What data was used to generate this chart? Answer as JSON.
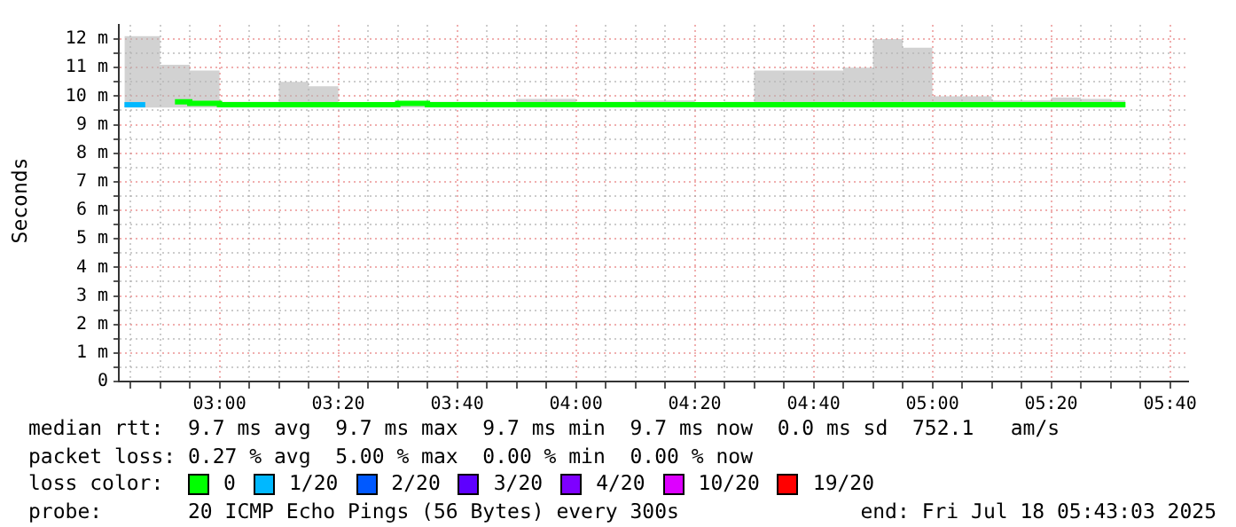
{
  "chart_data": {
    "type": "step",
    "ylabel": "Seconds",
    "legend_title": "loss color:",
    "legend": "bottom",
    "grid": true,
    "x": [
      2.7333,
      2.7917,
      2.875,
      2.9583,
      3.0417,
      3.125,
      3.2083,
      3.2917,
      3.375,
      3.4583,
      3.5417,
      3.625,
      3.7083,
      3.7917,
      3.875,
      3.9583,
      4.0417,
      4.125,
      4.2083,
      4.2917,
      4.375,
      4.4583,
      4.5417,
      4.625,
      4.7083,
      4.7917,
      4.875,
      4.9583,
      5.0417,
      5.125,
      5.2083,
      5.2917,
      5.375,
      5.4583,
      5.5417
    ],
    "xlim": [
      2.7175,
      5.7175
    ],
    "xticks": [
      {
        "value": 2.75,
        "label": null
      },
      {
        "value": 2.8333,
        "label": null
      },
      {
        "value": 2.9167,
        "label": null
      },
      {
        "value": 3,
        "label": "03:00"
      },
      {
        "value": 3.0833,
        "label": null
      },
      {
        "value": 3.1667,
        "label": null
      },
      {
        "value": 3.25,
        "label": null
      },
      {
        "value": 3.3333,
        "label": "03:20"
      },
      {
        "value": 3.4167,
        "label": null
      },
      {
        "value": 3.5,
        "label": null
      },
      {
        "value": 3.5833,
        "label": null
      },
      {
        "value": 3.6667,
        "label": "03:40"
      },
      {
        "value": 3.75,
        "label": null
      },
      {
        "value": 3.8333,
        "label": null
      },
      {
        "value": 3.9167,
        "label": null
      },
      {
        "value": 4,
        "label": "04:00"
      },
      {
        "value": 4.0833,
        "label": null
      },
      {
        "value": 4.1667,
        "label": null
      },
      {
        "value": 4.25,
        "label": null
      },
      {
        "value": 4.3333,
        "label": "04:20"
      },
      {
        "value": 4.4167,
        "label": null
      },
      {
        "value": 4.5,
        "label": null
      },
      {
        "value": 4.5833,
        "label": null
      },
      {
        "value": 4.6667,
        "label": "04:40"
      },
      {
        "value": 4.75,
        "label": null
      },
      {
        "value": 4.8333,
        "label": null
      },
      {
        "value": 4.9167,
        "label": null
      },
      {
        "value": 5,
        "label": "05:00"
      },
      {
        "value": 5.0833,
        "label": null
      },
      {
        "value": 5.1667,
        "label": null
      },
      {
        "value": 5.25,
        "label": null
      },
      {
        "value": 5.3333,
        "label": "05:20"
      },
      {
        "value": 5.4167,
        "label": null
      },
      {
        "value": 5.5,
        "label": null
      },
      {
        "value": 5.5833,
        "label": null
      },
      {
        "value": 5.6667,
        "label": "05:40"
      }
    ],
    "ylim": [
      0,
      12.5
    ],
    "yticks": [
      0,
      {
        "value": 0.5,
        "label": null
      },
      {
        "value": 1,
        "label": "1 m"
      },
      {
        "value": 1.5,
        "label": null
      },
      {
        "value": 2,
        "label": "2 m"
      },
      {
        "value": 2.5,
        "label": null
      },
      {
        "value": 3,
        "label": "3 m"
      },
      {
        "value": 3.5,
        "label": null
      },
      {
        "value": 4,
        "label": "4 m"
      },
      {
        "value": 4.5,
        "label": null
      },
      {
        "value": 5,
        "label": "5 m"
      },
      {
        "value": 5.5,
        "label": null
      },
      {
        "value": 6,
        "label": "6 m"
      },
      {
        "value": 6.5,
        "label": null
      },
      {
        "value": 7,
        "label": "7 m"
      },
      {
        "value": 7.5,
        "label": null
      },
      {
        "value": 8,
        "label": "8 m"
      },
      {
        "value": 8.5,
        "label": null
      },
      {
        "value": 9,
        "label": "9 m"
      },
      {
        "value": 9.5,
        "label": null
      },
      {
        "value": 10,
        "label": "10 m"
      },
      {
        "value": 10.5,
        "label": null
      },
      {
        "value": 11,
        "label": "11 m"
      },
      {
        "value": 11.5,
        "label": null
      },
      {
        "value": 12,
        "label": "12 m"
      }
    ],
    "series": [
      {
        "name": "0",
        "color": "#00ff00",
        "values": [
          null,
          null,
          9.8,
          9.75,
          9.7,
          9.7,
          9.7,
          9.7,
          9.7,
          9.7,
          9.75,
          9.7,
          9.7,
          9.7,
          9.7,
          9.7,
          9.7,
          9.7,
          9.7,
          9.7,
          9.7,
          9.7,
          9.7,
          9.7,
          9.7,
          9.7,
          9.7,
          9.7,
          9.7,
          9.7,
          9.7,
          9.7,
          9.7,
          9.7,
          9.7
        ],
        "lower": [
          9.6,
          9.6,
          9.6,
          9.6,
          9.6,
          9.6,
          9.6,
          9.6,
          9.6,
          9.6,
          9.6,
          9.6,
          9.6,
          9.6,
          9.6,
          9.6,
          9.6,
          9.6,
          9.6,
          9.6,
          9.6,
          9.6,
          9.6,
          9.6,
          9.6,
          9.6,
          9.6,
          9.6,
          9.6,
          9.6,
          9.6,
          9.6,
          9.6,
          9.6,
          9.6
        ],
        "upper": [
          12.1,
          12.1,
          11.1,
          10.9,
          9.8,
          9.8,
          10.5,
          10.35,
          9.7,
          9.7,
          9.8,
          9.8,
          9.8,
          9.8,
          9.9,
          9.9,
          9.8,
          9.8,
          9.85,
          9.85,
          9.7,
          9.8,
          10.9,
          10.9,
          10.9,
          11,
          12,
          11.7,
          10,
          10,
          9.85,
          9.85,
          9.95,
          9.9,
          9.85
        ]
      },
      {
        "name": "1/20",
        "color": "#00b8ff",
        "values": [
          9.7,
          9.7,
          null,
          null,
          null,
          null,
          null,
          null,
          null,
          null,
          null,
          null,
          null,
          null,
          null,
          null,
          null,
          null,
          null,
          null,
          null,
          null,
          null,
          null,
          null,
          null,
          null,
          null,
          null,
          null,
          null,
          null,
          null,
          null,
          null
        ]
      },
      {
        "name": "2/20",
        "color": "#0059ff",
        "values": [
          null,
          null,
          null,
          null,
          null,
          null,
          null,
          null,
          null,
          null,
          null,
          null,
          null,
          null,
          null,
          null,
          null,
          null,
          null,
          null,
          null,
          null,
          null,
          null,
          null,
          null,
          null,
          null,
          null,
          null,
          null,
          null,
          null,
          null,
          null
        ]
      },
      {
        "name": "3/20",
        "color": "#5e00ff",
        "values": [
          null,
          null,
          null,
          null,
          null,
          null,
          null,
          null,
          null,
          null,
          null,
          null,
          null,
          null,
          null,
          null,
          null,
          null,
          null,
          null,
          null,
          null,
          null,
          null,
          null,
          null,
          null,
          null,
          null,
          null,
          null,
          null,
          null,
          null,
          null
        ]
      },
      {
        "name": "4/20",
        "color": "#7e00ff",
        "values": [
          null,
          null,
          null,
          null,
          null,
          null,
          null,
          null,
          null,
          null,
          null,
          null,
          null,
          null,
          null,
          null,
          null,
          null,
          null,
          null,
          null,
          null,
          null,
          null,
          null,
          null,
          null,
          null,
          null,
          null,
          null,
          null,
          null,
          null,
          null
        ]
      },
      {
        "name": "10/20",
        "color": "#dd00ff",
        "values": [
          null,
          null,
          null,
          null,
          null,
          null,
          null,
          null,
          null,
          null,
          null,
          null,
          null,
          null,
          null,
          null,
          null,
          null,
          null,
          null,
          null,
          null,
          null,
          null,
          null,
          null,
          null,
          null,
          null,
          null,
          null,
          null,
          null,
          null,
          null
        ]
      },
      {
        "name": "19/20",
        "color": "#ff0000",
        "values": [
          null,
          null,
          null,
          null,
          null,
          null,
          null,
          null,
          null,
          null,
          null,
          null,
          null,
          null,
          null,
          null,
          null,
          null,
          null,
          null,
          null,
          null,
          null,
          null,
          null,
          null,
          null,
          null,
          null,
          null,
          null,
          null,
          null,
          null,
          null
        ]
      }
    ],
    "annotations": [
      "median rtt:  9.7 ms avg  9.7 ms max  9.7 ms min  9.7 ms now  0.0 ms sd  752.1   am/s",
      "packet loss: 0.27 % avg  5.00 % max  0.00 % min  0.00 % now",
      "probe:       20 ICMP Echo Pings (56 Bytes) every 300s",
      "end: Fri Jul 18 05:43:03 2025"
    ]
  }
}
